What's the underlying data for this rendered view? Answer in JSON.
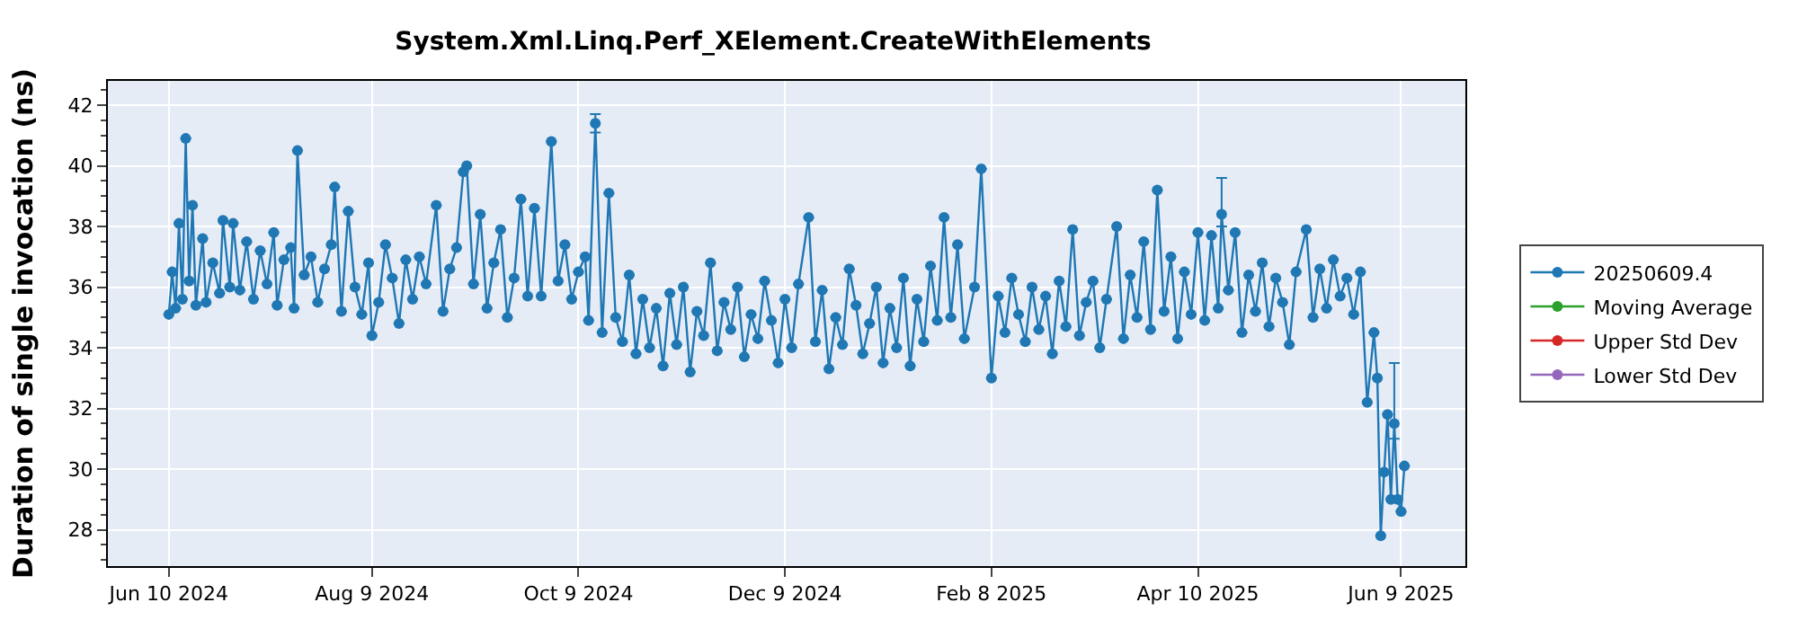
{
  "chart_data": {
    "type": "line",
    "title": "System.Xml.Linq.Perf_XElement.CreateWithElements",
    "ylabel": "Duration of single invocation (ns)",
    "xlim": [
      "2024-05-23",
      "2025-06-28"
    ],
    "xticks": [
      {
        "value": "2024-06-10",
        "label": "Jun 10 2024"
      },
      {
        "value": "2024-08-09",
        "label": "Aug 9 2024"
      },
      {
        "value": "2024-10-09",
        "label": "Oct 9 2024"
      },
      {
        "value": "2024-12-09",
        "label": "Dec 9 2024"
      },
      {
        "value": "2025-02-08",
        "label": "Feb 8 2025"
      },
      {
        "value": "2025-04-10",
        "label": "Apr 10 2025"
      },
      {
        "value": "2025-06-09",
        "label": "Jun 9 2025"
      }
    ],
    "ylim": [
      26.8,
      42.8
    ],
    "yticks": [
      28,
      30,
      32,
      34,
      36,
      38,
      40,
      42
    ],
    "grid": true,
    "legend": "right",
    "marker": "circle",
    "line_style": "solid",
    "series": [
      {
        "name": "20250609.4",
        "color": "#1f77b4",
        "x": [
          "2024-06-10",
          "2024-06-11",
          "2024-06-12",
          "2024-06-13",
          "2024-06-14",
          "2024-06-15",
          "2024-06-16",
          "2024-06-17",
          "2024-06-18",
          "2024-06-20",
          "2024-06-21",
          "2024-06-23",
          "2024-06-25",
          "2024-06-26",
          "2024-06-28",
          "2024-06-29",
          "2024-07-01",
          "2024-07-03",
          "2024-07-05",
          "2024-07-07",
          "2024-07-09",
          "2024-07-11",
          "2024-07-12",
          "2024-07-14",
          "2024-07-16",
          "2024-07-17",
          "2024-07-18",
          "2024-07-20",
          "2024-07-22",
          "2024-07-24",
          "2024-07-26",
          "2024-07-28",
          "2024-07-29",
          "2024-07-31",
          "2024-08-02",
          "2024-08-04",
          "2024-08-06",
          "2024-08-08",
          "2024-08-09",
          "2024-08-11",
          "2024-08-13",
          "2024-08-15",
          "2024-08-17",
          "2024-08-19",
          "2024-08-21",
          "2024-08-23",
          "2024-08-25",
          "2024-08-28",
          "2024-08-30",
          "2024-09-01",
          "2024-09-03",
          "2024-09-05",
          "2024-09-06",
          "2024-09-08",
          "2024-09-10",
          "2024-09-12",
          "2024-09-14",
          "2024-09-16",
          "2024-09-18",
          "2024-09-20",
          "2024-09-22",
          "2024-09-24",
          "2024-09-26",
          "2024-09-28",
          "2024-10-01",
          "2024-10-03",
          "2024-10-05",
          "2024-10-07",
          "2024-10-09",
          "2024-10-11",
          "2024-10-12",
          "2024-10-14",
          "2024-10-16",
          "2024-10-18",
          "2024-10-20",
          "2024-10-22",
          "2024-10-24",
          "2024-10-26",
          "2024-10-28",
          "2024-10-30",
          "2024-11-01",
          "2024-11-03",
          "2024-11-05",
          "2024-11-07",
          "2024-11-09",
          "2024-11-11",
          "2024-11-13",
          "2024-11-15",
          "2024-11-17",
          "2024-11-19",
          "2024-11-21",
          "2024-11-23",
          "2024-11-25",
          "2024-11-27",
          "2024-11-29",
          "2024-12-01",
          "2024-12-03",
          "2024-12-05",
          "2024-12-07",
          "2024-12-09",
          "2024-12-11",
          "2024-12-13",
          "2024-12-16",
          "2024-12-18",
          "2024-12-20",
          "2024-12-22",
          "2024-12-24",
          "2024-12-26",
          "2024-12-28",
          "2024-12-30",
          "2025-01-01",
          "2025-01-03",
          "2025-01-05",
          "2025-01-07",
          "2025-01-09",
          "2025-01-11",
          "2025-01-13",
          "2025-01-15",
          "2025-01-17",
          "2025-01-19",
          "2025-01-21",
          "2025-01-23",
          "2025-01-25",
          "2025-01-27",
          "2025-01-29",
          "2025-01-31",
          "2025-02-03",
          "2025-02-05",
          "2025-02-08",
          "2025-02-10",
          "2025-02-12",
          "2025-02-14",
          "2025-02-16",
          "2025-02-18",
          "2025-02-20",
          "2025-02-22",
          "2025-02-24",
          "2025-02-26",
          "2025-02-28",
          "2025-03-02",
          "2025-03-04",
          "2025-03-06",
          "2025-03-08",
          "2025-03-10",
          "2025-03-12",
          "2025-03-14",
          "2025-03-17",
          "2025-03-19",
          "2025-03-21",
          "2025-03-23",
          "2025-03-25",
          "2025-03-27",
          "2025-03-29",
          "2025-03-31",
          "2025-04-02",
          "2025-04-04",
          "2025-04-06",
          "2025-04-08",
          "2025-04-10",
          "2025-04-12",
          "2025-04-14",
          "2025-04-16",
          "2025-04-17",
          "2025-04-19",
          "2025-04-21",
          "2025-04-23",
          "2025-04-25",
          "2025-04-27",
          "2025-04-29",
          "2025-05-01",
          "2025-05-03",
          "2025-05-05",
          "2025-05-07",
          "2025-05-09",
          "2025-05-12",
          "2025-05-14",
          "2025-05-16",
          "2025-05-18",
          "2025-05-20",
          "2025-05-22",
          "2025-05-24",
          "2025-05-26",
          "2025-05-28",
          "2025-05-30",
          "2025-06-01",
          "2025-06-02",
          "2025-06-03",
          "2025-06-04",
          "2025-06-05",
          "2025-06-06",
          "2025-06-07",
          "2025-06-08",
          "2025-06-09",
          "2025-06-10"
        ],
        "values": [
          35.1,
          36.5,
          35.3,
          38.1,
          35.6,
          40.9,
          36.2,
          38.7,
          35.4,
          37.6,
          35.5,
          36.8,
          35.8,
          38.2,
          36.0,
          38.1,
          35.9,
          37.5,
          35.6,
          37.2,
          36.1,
          37.8,
          35.4,
          36.9,
          37.3,
          35.3,
          40.5,
          36.4,
          37.0,
          35.5,
          36.6,
          37.4,
          39.3,
          35.2,
          38.5,
          36.0,
          35.1,
          36.8,
          34.4,
          35.5,
          37.4,
          36.3,
          34.8,
          36.9,
          35.6,
          37.0,
          36.1,
          38.7,
          35.2,
          36.6,
          37.3,
          39.8,
          40.0,
          36.1,
          38.4,
          35.3,
          36.8,
          37.9,
          35.0,
          36.3,
          38.9,
          35.7,
          38.6,
          35.7,
          40.8,
          36.2,
          37.4,
          35.6,
          36.5,
          37.0,
          34.9,
          41.4,
          34.5,
          39.1,
          35.0,
          34.2,
          36.4,
          33.8,
          35.6,
          34.0,
          35.3,
          33.4,
          35.8,
          34.1,
          36.0,
          33.2,
          35.2,
          34.4,
          36.8,
          33.9,
          35.5,
          34.6,
          36.0,
          33.7,
          35.1,
          34.3,
          36.2,
          34.9,
          33.5,
          35.6,
          34.0,
          36.1,
          38.3,
          34.2,
          35.9,
          33.3,
          35.0,
          34.1,
          36.6,
          35.4,
          33.8,
          34.8,
          36.0,
          33.5,
          35.3,
          34.0,
          36.3,
          33.4,
          35.6,
          34.2,
          36.7,
          34.9,
          38.3,
          35.0,
          37.4,
          34.3,
          36.0,
          39.9,
          33.0,
          35.7,
          34.5,
          36.3,
          35.1,
          34.2,
          36.0,
          34.6,
          35.7,
          33.8,
          36.2,
          34.7,
          37.9,
          34.4,
          35.5,
          36.2,
          34.0,
          35.6,
          38.0,
          34.3,
          36.4,
          35.0,
          37.5,
          34.6,
          39.2,
          35.2,
          37.0,
          34.3,
          36.5,
          35.1,
          37.8,
          34.9,
          37.7,
          35.3,
          38.4,
          35.9,
          37.8,
          34.5,
          36.4,
          35.2,
          36.8,
          34.7,
          36.3,
          35.5,
          34.1,
          36.5,
          37.9,
          35.0,
          36.6,
          35.3,
          36.9,
          35.7,
          36.3,
          35.1,
          36.5,
          32.2,
          34.5,
          33.0,
          27.8,
          29.9,
          31.8,
          29.0,
          31.5,
          29.0,
          28.6,
          30.1
        ],
        "errors": [
          null,
          null,
          null,
          null,
          null,
          null,
          null,
          null,
          null,
          null,
          null,
          null,
          null,
          null,
          null,
          null,
          null,
          null,
          null,
          null,
          null,
          null,
          null,
          null,
          null,
          null,
          null,
          null,
          null,
          null,
          null,
          null,
          null,
          null,
          null,
          null,
          null,
          null,
          null,
          null,
          null,
          null,
          null,
          null,
          null,
          null,
          null,
          null,
          null,
          null,
          null,
          null,
          null,
          null,
          null,
          null,
          null,
          null,
          null,
          null,
          null,
          null,
          null,
          null,
          null,
          null,
          null,
          null,
          null,
          null,
          null,
          [
            41.1,
            41.7
          ],
          null,
          null,
          null,
          null,
          null,
          null,
          null,
          null,
          null,
          null,
          null,
          null,
          null,
          null,
          null,
          null,
          null,
          null,
          null,
          null,
          null,
          null,
          null,
          null,
          null,
          null,
          null,
          null,
          null,
          null,
          null,
          null,
          null,
          null,
          null,
          null,
          null,
          null,
          null,
          null,
          null,
          null,
          null,
          null,
          null,
          null,
          null,
          null,
          null,
          null,
          null,
          null,
          null,
          null,
          null,
          null,
          null,
          null,
          null,
          null,
          null,
          null,
          null,
          null,
          null,
          null,
          null,
          null,
          null,
          null,
          null,
          null,
          null,
          null,
          null,
          null,
          null,
          null,
          null,
          null,
          null,
          null,
          null,
          null,
          null,
          null,
          null,
          null,
          null,
          null,
          [
            38.0,
            39.6
          ],
          null,
          null,
          null,
          null,
          null,
          null,
          null,
          null,
          null,
          null,
          null,
          null,
          null,
          null,
          null,
          null,
          null,
          null,
          null,
          null,
          null,
          null,
          null,
          null,
          null,
          null,
          null,
          [
            31.0,
            33.5
          ],
          null,
          null,
          null
        ]
      },
      {
        "name": "Moving Average",
        "color": "#2ca02c"
      },
      {
        "name": "Upper Std Dev",
        "color": "#d62728"
      },
      {
        "name": "Lower Std Dev",
        "color": "#9467bd"
      }
    ]
  }
}
